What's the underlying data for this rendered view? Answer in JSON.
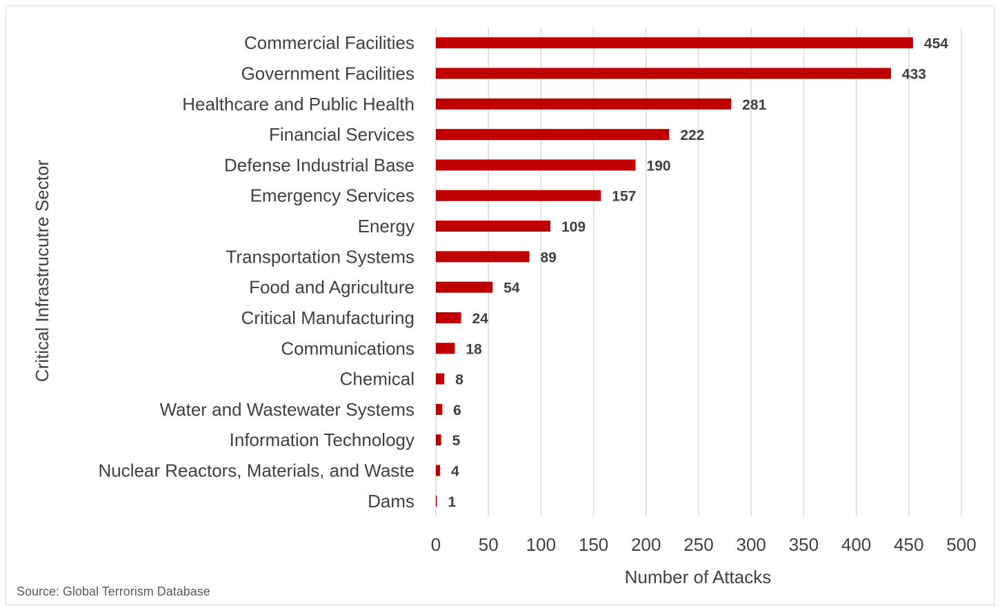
{
  "chart_data": {
    "type": "bar",
    "orientation": "horizontal",
    "categories": [
      "Commercial Facilities",
      "Government Facilities",
      "Healthcare and Public Health",
      "Financial Services",
      "Defense Industrial Base",
      "Emergency Services",
      "Energy",
      "Transportation Systems",
      "Food and Agriculture",
      "Critical Manufacturing",
      "Communications",
      "Chemical",
      "Water and Wastewater Systems",
      "Information Technology",
      "Nuclear Reactors, Materials, and Waste",
      "Dams"
    ],
    "values": [
      454,
      433,
      281,
      222,
      190,
      157,
      109,
      89,
      54,
      24,
      18,
      8,
      6,
      5,
      4,
      1
    ],
    "value_labels": [
      "454",
      "433",
      "281",
      "222",
      "190",
      "157",
      "109",
      "89",
      "54",
      "24",
      "18",
      "8",
      "6",
      "5",
      "4",
      "1"
    ],
    "xlabel": "Number of Attacks",
    "ylabel": "Critical Infrastrucutre Sector",
    "xlim": [
      0,
      500
    ],
    "xticks": [
      0,
      50,
      100,
      150,
      200,
      250,
      300,
      350,
      400,
      450,
      500
    ],
    "tick_labels": [
      "0",
      "50",
      "100",
      "150",
      "200",
      "250",
      "300",
      "350",
      "400",
      "450",
      "500"
    ],
    "grid": "vertical",
    "bar_color": "#c00000",
    "grid_color": "#d9d9d9",
    "legend": "none"
  },
  "source_note": "Source: Global Terrorism Database"
}
